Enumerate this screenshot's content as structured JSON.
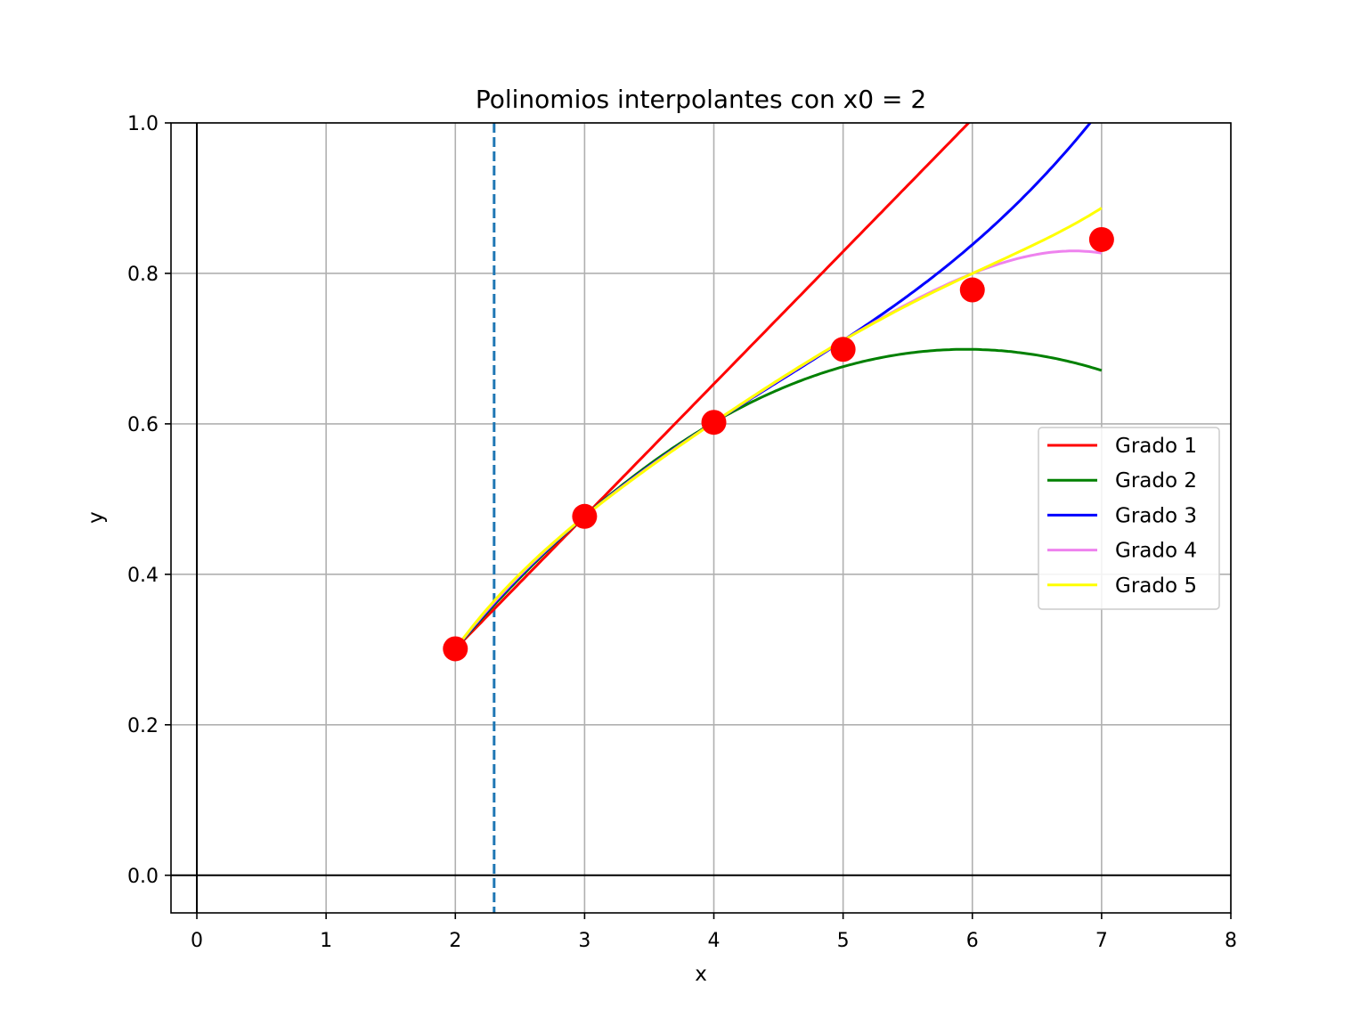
{
  "chart_data": {
    "type": "line",
    "title": "Polinomios interpolantes con x0 = 2",
    "xlabel": "x",
    "ylabel": "y",
    "xlim": [
      -0.2,
      8
    ],
    "ylim": [
      -0.05,
      1.0
    ],
    "xticks": [
      0,
      1,
      2,
      3,
      4,
      5,
      6,
      7,
      8
    ],
    "yticks": [
      0.0,
      0.2,
      0.4,
      0.6,
      0.8,
      1.0
    ],
    "xtick_labels": [
      "0",
      "1",
      "2",
      "3",
      "4",
      "5",
      "6",
      "7",
      "8"
    ],
    "ytick_labels": [
      "0.0",
      "0.2",
      "0.4",
      "0.6",
      "0.8",
      "1.0"
    ],
    "grid": true,
    "axhline_y": 0,
    "axvline_x": 0,
    "marker_line": {
      "x": 2.3,
      "style": "dashed",
      "color": "#1f77b4"
    },
    "points": {
      "color": "#ff0000",
      "x": [
        2,
        3,
        4,
        5,
        6,
        7
      ],
      "y": [
        0.301,
        0.477,
        0.602,
        0.699,
        0.778,
        0.845
      ]
    },
    "series": [
      {
        "name": "Grado 1",
        "color": "#ff0000",
        "coefficients": [
          0.301,
          0.176
        ]
      },
      {
        "name": "Grado 2",
        "color": "#008000",
        "coefficients": [
          0.301,
          0.176,
          -0.0255
        ]
      },
      {
        "name": "Grado 3",
        "color": "#0000ff",
        "coefficients": [
          0.301,
          0.176,
          -0.0255,
          0.0058
        ]
      },
      {
        "name": "Grado 4",
        "color": "#ee82ee",
        "coefficients": [
          0.301,
          0.176,
          -0.0255,
          0.0058,
          -0.0016
        ]
      },
      {
        "name": "Grado 5",
        "color": "#ffff00",
        "coefficients": [
          0.301,
          0.176,
          -0.0255,
          0.0058,
          -0.0016,
          0.0005
        ]
      }
    ],
    "legend_position": "center-right"
  }
}
